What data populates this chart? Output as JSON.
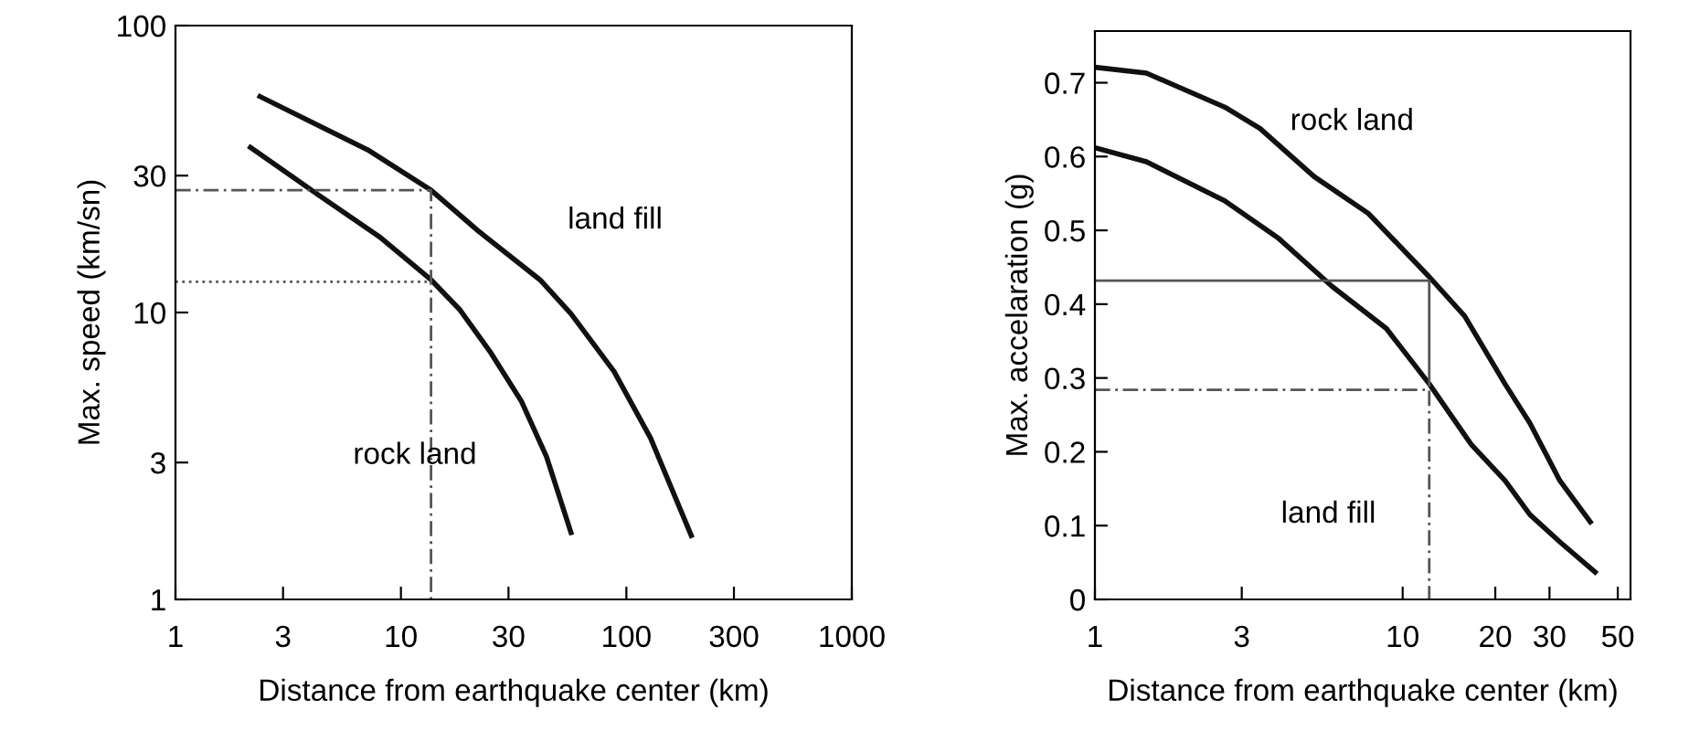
{
  "chart_data": [
    {
      "type": "line",
      "xlabel": "Distance from earthquake center (km)",
      "ylabel": "Max. speed (km/sn)",
      "log": "xy",
      "xlim": [
        1,
        1000
      ],
      "xticks": [
        1,
        3,
        10,
        30,
        100,
        300,
        1000
      ],
      "ylim": [
        1,
        100
      ],
      "yticks": [
        1,
        3,
        10,
        30,
        100
      ],
      "series": [
        {
          "color": "#111111",
          "x": [
            2.37,
            4.3,
            7.12,
            13.6,
            22.1,
            41.4,
            56.8,
            88.1,
            128,
            194
          ],
          "values": [
            56.6,
            44.9,
            36.9,
            26.7,
            19.2,
            13.0,
            9.9,
            6.24,
            3.65,
            1.67
          ]
        },
        {
          "color": "#111111",
          "x": [
            2.15,
            4.3,
            8.08,
            13.6,
            18.3,
            25.1,
            34.3,
            44.2,
            56.8
          ],
          "values": [
            37.6,
            25.7,
            18.3,
            13.0,
            10.2,
            7.22,
            4.89,
            3.15,
            1.71
          ]
        },
        {
          "color": "#555555",
          "line_style": "dashed",
          "x": [
            1,
            13.6,
            13.6
          ],
          "values": [
            26.7,
            26.7,
            1
          ]
        },
        {
          "color": "#555555",
          "line_style": "dotted",
          "x": [
            1,
            13.6
          ],
          "values": [
            12.8,
            12.8
          ]
        }
      ],
      "annotations": [
        "land fill",
        "rock land"
      ],
      "grid": false,
      "legend": false
    },
    {
      "type": "line",
      "xlabel": "Distance from earthquake center (km)",
      "ylabel": "Max. accelaration (g)",
      "log": "x",
      "xlim": [
        1,
        55
      ],
      "xticks": [
        1,
        3,
        10,
        20,
        30,
        50
      ],
      "ylim": [
        0,
        0.77
      ],
      "yticks": [
        0,
        0.1,
        0.2,
        0.3,
        0.4,
        0.5,
        0.6,
        0.7
      ],
      "series": [
        {
          "color": "#111111",
          "x": [
            1,
            1.47,
            2.64,
            3.44,
            5.15,
            7.73,
            12.2,
            15.9,
            21.5,
            25.9,
            32.4,
            40.7
          ],
          "values": [
            0.721,
            0.713,
            0.667,
            0.638,
            0.573,
            0.523,
            0.437,
            0.384,
            0.292,
            0.239,
            0.161,
            0.105
          ]
        },
        {
          "color": "#111111",
          "x": [
            1,
            1.47,
            2.64,
            3.93,
            5.9,
            8.85,
            12.2,
            16.7,
            21.5,
            25.9,
            32.4,
            42.2
          ],
          "values": [
            0.612,
            0.593,
            0.54,
            0.49,
            0.424,
            0.367,
            0.292,
            0.21,
            0.161,
            0.115,
            0.078,
            0.037
          ]
        },
        {
          "color": "#555555",
          "line_style": "solid",
          "x": [
            1,
            12.2,
            12.2
          ],
          "values": [
            0.432,
            0.432,
            0.29
          ]
        },
        {
          "color": "#555555",
          "line_style": "dashed",
          "x": [
            1,
            12.2,
            12.2
          ],
          "values": [
            0.284,
            0.284,
            0
          ]
        }
      ],
      "annotations": [
        "rock land",
        "land fill"
      ],
      "grid": false,
      "legend": false
    }
  ]
}
